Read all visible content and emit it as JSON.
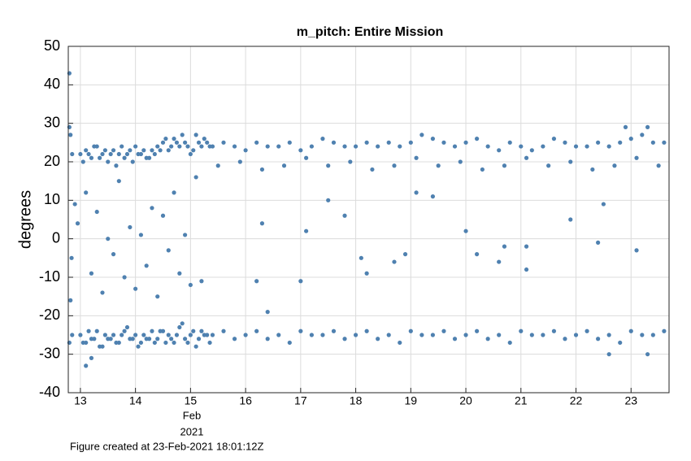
{
  "chart_data": {
    "type": "scatter",
    "title": "m_pitch: Entire Mission",
    "y_label": "degrees",
    "x_sublabel": [
      "Feb",
      "2021"
    ],
    "footer": "Figure created at 23-Feb-2021 18:01:12Z",
    "xlim": [
      12.78,
      23.69
    ],
    "ylim": [
      -40,
      50
    ],
    "xticks": [
      13,
      14,
      15,
      16,
      17,
      18,
      19,
      20,
      21,
      22,
      23
    ],
    "yticks": [
      -40,
      -30,
      -20,
      -10,
      0,
      10,
      20,
      30,
      40,
      50
    ],
    "grid": true,
    "series": [
      {
        "color": "#4f81b0",
        "x": [
          12.8,
          12.8,
          12.82,
          12.85,
          12.85,
          12.8,
          12.82,
          12.84,
          12.9,
          12.95,
          13.1,
          13.2,
          13.3,
          13.4,
          13.5,
          13.6,
          13.7,
          13.8,
          13.9,
          14.0,
          14.1,
          14.2,
          14.3,
          14.4,
          14.5,
          14.6,
          14.7,
          14.8,
          14.9,
          15.0,
          15.1,
          15.2,
          13.2,
          13.1,
          16.2,
          16.3,
          16.4,
          17.1,
          17.0,
          17.5,
          17.8,
          18.1,
          18.2,
          18.7,
          18.9,
          19.1,
          19.4,
          20.0,
          20.2,
          20.7,
          20.6,
          21.1,
          21.1,
          21.9,
          22.4,
          22.5,
          22.6,
          23.1,
          23.3,
          23.3,
          22.9
        ],
        "values": [
          43,
          29,
          27,
          22,
          -25,
          -27,
          -16,
          -5,
          9,
          4,
          12,
          -9,
          7,
          -14,
          0,
          -4,
          15,
          -10,
          3,
          -13,
          1,
          -7,
          8,
          -15,
          6,
          -3,
          12,
          -9,
          1,
          -12,
          16,
          -11,
          -31,
          -33,
          -11,
          4,
          -19,
          2,
          -11,
          10,
          6,
          -5,
          -9,
          -6,
          -4,
          12,
          11,
          2,
          -4,
          -2,
          -6,
          -2,
          -8,
          5,
          -1,
          9,
          -30,
          -3,
          -30,
          29,
          29
        ]
      },
      {
        "color": "#4f81b0",
        "x": [
          13.0,
          13.1,
          13.2,
          13.3,
          13.4,
          13.5,
          13.6,
          13.7,
          13.8,
          13.9,
          14.0,
          14.1,
          14.2,
          14.3,
          13.05,
          13.15,
          13.25,
          13.35,
          13.45,
          13.55,
          13.65,
          13.75,
          13.85,
          13.95,
          14.05,
          14.15,
          14.25,
          14.35
        ],
        "values": [
          22,
          23,
          21,
          24,
          22,
          20,
          23,
          22,
          21,
          23,
          24,
          22,
          21,
          23,
          20,
          22,
          24,
          21,
          23,
          22,
          19,
          24,
          22,
          20,
          22,
          23,
          21,
          22
        ]
      },
      {
        "color": "#4f81b0",
        "x": [
          13.0,
          13.1,
          13.2,
          13.3,
          13.4,
          13.5,
          13.6,
          13.7,
          13.8,
          13.9,
          14.0,
          14.1,
          14.2,
          14.3,
          13.05,
          13.15,
          13.25,
          13.35,
          13.45,
          13.55,
          13.65,
          13.75,
          13.85,
          13.95,
          14.05,
          14.15,
          14.25,
          14.35
        ],
        "values": [
          -25,
          -27,
          -26,
          -24,
          -28,
          -26,
          -25,
          -27,
          -24,
          -26,
          -25,
          -27,
          -26,
          -24,
          -27,
          -24,
          -26,
          -28,
          -25,
          -26,
          -27,
          -25,
          -23,
          -26,
          -28,
          -25,
          -26,
          -27
        ]
      },
      {
        "color": "#4f81b0",
        "x": [
          14.4,
          14.5,
          14.6,
          14.7,
          14.8,
          14.9,
          15.0,
          15.1,
          15.2,
          15.3,
          14.45,
          14.55,
          14.65,
          14.75,
          14.85,
          14.95,
          15.05,
          15.15,
          15.25,
          15.35
        ],
        "values": [
          24,
          25,
          23,
          26,
          24,
          25,
          22,
          27,
          24,
          25,
          23,
          26,
          24,
          25,
          27,
          24,
          23,
          25,
          26,
          24
        ]
      },
      {
        "color": "#4f81b0",
        "x": [
          14.4,
          14.5,
          14.6,
          14.7,
          14.8,
          14.9,
          15.0,
          15.1,
          15.2,
          15.3,
          14.45,
          14.55,
          14.65,
          14.75,
          14.85,
          14.95,
          15.05,
          15.15,
          15.25,
          15.35
        ],
        "values": [
          -26,
          -24,
          -25,
          -27,
          -23,
          -26,
          -25,
          -28,
          -24,
          -25,
          -24,
          -27,
          -26,
          -25,
          -22,
          -27,
          -24,
          -26,
          -25,
          -27
        ]
      },
      {
        "color": "#4f81b0",
        "x": [
          15.4,
          15.6,
          15.8,
          16.0,
          16.2,
          16.4,
          16.6,
          16.8,
          17.0,
          17.2,
          17.4,
          17.6,
          17.8,
          18.0,
          18.2,
          18.4,
          18.6,
          18.8,
          19.0,
          19.2,
          19.4,
          19.6,
          19.8,
          20.0,
          20.2,
          20.4,
          20.6,
          20.8,
          21.0,
          21.2,
          21.4,
          21.6,
          21.8,
          22.0,
          22.2,
          22.4,
          22.6,
          22.8,
          23.0,
          23.2,
          23.4,
          23.6
        ],
        "values": [
          24,
          25,
          24,
          23,
          25,
          24,
          24,
          25,
          23,
          24,
          26,
          25,
          24,
          24,
          25,
          24,
          25,
          24,
          25,
          27,
          26,
          25,
          24,
          25,
          26,
          24,
          23,
          25,
          24,
          23,
          24,
          26,
          25,
          24,
          24,
          25,
          24,
          25,
          26,
          27,
          25,
          25
        ]
      },
      {
        "color": "#4f81b0",
        "x": [
          15.4,
          15.6,
          15.8,
          16.0,
          16.2,
          16.4,
          16.6,
          16.8,
          17.0,
          17.2,
          17.4,
          17.6,
          17.8,
          18.0,
          18.2,
          18.4,
          18.6,
          18.8,
          19.0,
          19.2,
          19.4,
          19.6,
          19.8,
          20.0,
          20.2,
          20.4,
          20.6,
          20.8,
          21.0,
          21.2,
          21.4,
          21.6,
          21.8,
          22.0,
          22.2,
          22.4,
          22.6,
          22.8,
          23.0,
          23.2,
          23.4,
          23.6
        ],
        "values": [
          -25,
          -24,
          -26,
          -25,
          -24,
          -26,
          -25,
          -27,
          -24,
          -25,
          -25,
          -24,
          -26,
          -25,
          -24,
          -26,
          -25,
          -27,
          -24,
          -25,
          -25,
          -24,
          -26,
          -25,
          -24,
          -26,
          -25,
          -27,
          -24,
          -25,
          -25,
          -24,
          -26,
          -25,
          -24,
          -26,
          -25,
          -27,
          -24,
          -25,
          -25,
          -24
        ]
      },
      {
        "color": "#4f81b0",
        "x": [
          15.5,
          15.9,
          16.3,
          16.7,
          17.1,
          17.5,
          17.9,
          18.3,
          18.7,
          19.1,
          19.5,
          19.9,
          20.3,
          20.7,
          21.1,
          21.5,
          21.9,
          22.3,
          22.7,
          23.1,
          23.5
        ],
        "values": [
          19,
          20,
          18,
          19,
          21,
          19,
          20,
          18,
          19,
          21,
          19,
          20,
          18,
          19,
          21,
          19,
          20,
          18,
          19,
          21,
          19
        ]
      }
    ]
  }
}
